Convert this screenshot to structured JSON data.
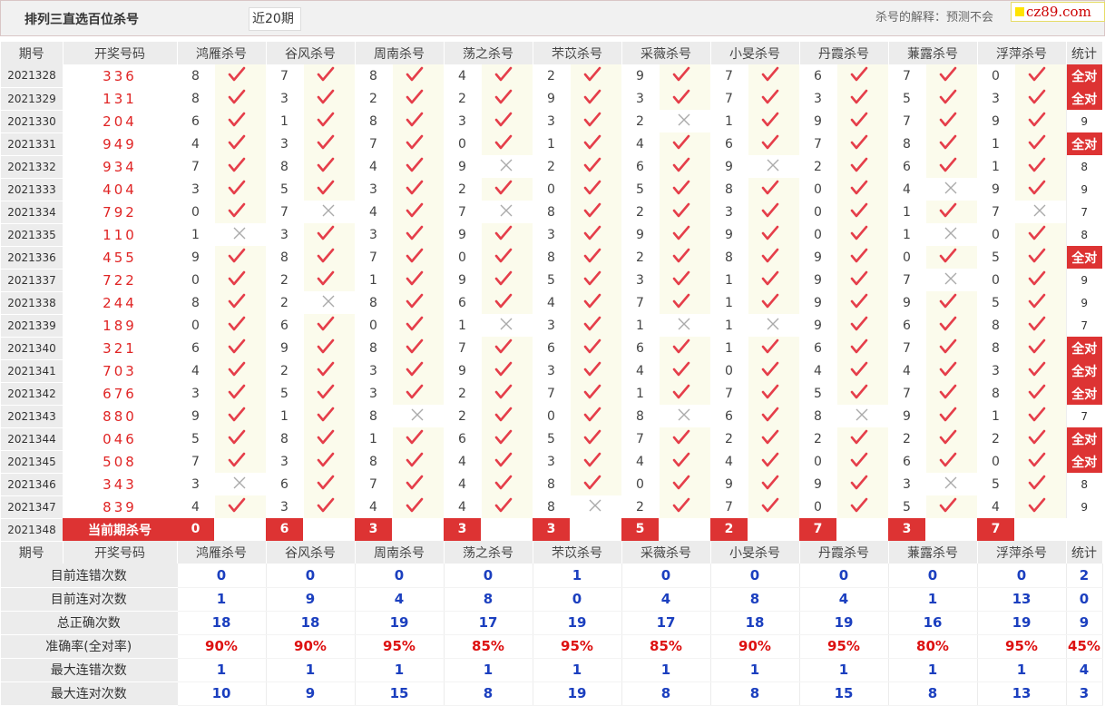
{
  "header": {
    "title": "排列三直选百位杀号",
    "period_select": "近20期",
    "explanation": "杀号的解释：预测不会",
    "watermark": "cz89.com"
  },
  "columns": [
    "期号",
    "开奖号码",
    "鸿雁杀号",
    "谷风杀号",
    "周南杀号",
    "荡之杀号",
    "芣苡杀号",
    "采薇杀号",
    "小旻杀号",
    "丹霞杀号",
    "蒹露杀号",
    "浮萍杀号",
    "统计"
  ],
  "rows": [
    {
      "period": "2021328",
      "draw": "336",
      "k": [
        "8",
        "7",
        "8",
        "4",
        "2",
        "9",
        "7",
        "6",
        "7",
        "0"
      ],
      "ok": [
        1,
        1,
        1,
        1,
        1,
        1,
        1,
        1,
        1,
        1
      ],
      "stat": "全对"
    },
    {
      "period": "2021329",
      "draw": "131",
      "k": [
        "8",
        "3",
        "2",
        "2",
        "9",
        "3",
        "7",
        "3",
        "5",
        "3"
      ],
      "ok": [
        1,
        1,
        1,
        1,
        1,
        1,
        1,
        1,
        1,
        1
      ],
      "stat": "全对"
    },
    {
      "period": "2021330",
      "draw": "204",
      "k": [
        "6",
        "1",
        "8",
        "3",
        "3",
        "2",
        "1",
        "9",
        "7",
        "9"
      ],
      "ok": [
        1,
        1,
        1,
        1,
        1,
        0,
        1,
        1,
        1,
        1
      ],
      "stat": "9"
    },
    {
      "period": "2021331",
      "draw": "949",
      "k": [
        "4",
        "3",
        "7",
        "0",
        "1",
        "4",
        "6",
        "7",
        "8",
        "1"
      ],
      "ok": [
        1,
        1,
        1,
        1,
        1,
        1,
        1,
        1,
        1,
        1
      ],
      "stat": "全对"
    },
    {
      "period": "2021332",
      "draw": "934",
      "k": [
        "7",
        "8",
        "4",
        "9",
        "2",
        "6",
        "9",
        "2",
        "6",
        "1"
      ],
      "ok": [
        1,
        1,
        1,
        0,
        1,
        1,
        0,
        1,
        1,
        1
      ],
      "stat": "8"
    },
    {
      "period": "2021333",
      "draw": "404",
      "k": [
        "3",
        "5",
        "3",
        "2",
        "0",
        "5",
        "8",
        "0",
        "4",
        "9"
      ],
      "ok": [
        1,
        1,
        1,
        1,
        1,
        1,
        1,
        1,
        0,
        1
      ],
      "stat": "9"
    },
    {
      "period": "2021334",
      "draw": "792",
      "k": [
        "0",
        "7",
        "4",
        "7",
        "8",
        "2",
        "3",
        "0",
        "1",
        "7"
      ],
      "ok": [
        1,
        0,
        1,
        0,
        1,
        1,
        1,
        1,
        1,
        0
      ],
      "stat": "7"
    },
    {
      "period": "2021335",
      "draw": "110",
      "k": [
        "1",
        "3",
        "3",
        "9",
        "3",
        "9",
        "9",
        "0",
        "1",
        "0"
      ],
      "ok": [
        0,
        1,
        1,
        1,
        1,
        1,
        1,
        1,
        0,
        1
      ],
      "stat": "8"
    },
    {
      "period": "2021336",
      "draw": "455",
      "k": [
        "9",
        "8",
        "7",
        "0",
        "8",
        "2",
        "8",
        "9",
        "0",
        "5"
      ],
      "ok": [
        1,
        1,
        1,
        1,
        1,
        1,
        1,
        1,
        1,
        1
      ],
      "stat": "全对"
    },
    {
      "period": "2021337",
      "draw": "722",
      "k": [
        "0",
        "2",
        "1",
        "9",
        "5",
        "3",
        "1",
        "9",
        "7",
        "0"
      ],
      "ok": [
        1,
        1,
        1,
        1,
        1,
        1,
        1,
        1,
        0,
        1
      ],
      "stat": "9"
    },
    {
      "period": "2021338",
      "draw": "244",
      "k": [
        "8",
        "2",
        "8",
        "6",
        "4",
        "7",
        "1",
        "9",
        "9",
        "5"
      ],
      "ok": [
        1,
        0,
        1,
        1,
        1,
        1,
        1,
        1,
        1,
        1
      ],
      "stat": "9"
    },
    {
      "period": "2021339",
      "draw": "189",
      "k": [
        "0",
        "6",
        "0",
        "1",
        "3",
        "1",
        "1",
        "9",
        "6",
        "8"
      ],
      "ok": [
        1,
        1,
        1,
        0,
        1,
        0,
        0,
        1,
        1,
        1
      ],
      "stat": "7"
    },
    {
      "period": "2021340",
      "draw": "321",
      "k": [
        "6",
        "9",
        "8",
        "7",
        "6",
        "6",
        "1",
        "6",
        "7",
        "8"
      ],
      "ok": [
        1,
        1,
        1,
        1,
        1,
        1,
        1,
        1,
        1,
        1
      ],
      "stat": "全对"
    },
    {
      "period": "2021341",
      "draw": "703",
      "k": [
        "4",
        "2",
        "3",
        "9",
        "3",
        "4",
        "0",
        "4",
        "4",
        "3"
      ],
      "ok": [
        1,
        1,
        1,
        1,
        1,
        1,
        1,
        1,
        1,
        1
      ],
      "stat": "全对"
    },
    {
      "period": "2021342",
      "draw": "676",
      "k": [
        "3",
        "5",
        "3",
        "2",
        "7",
        "1",
        "7",
        "5",
        "7",
        "8"
      ],
      "ok": [
        1,
        1,
        1,
        1,
        1,
        1,
        1,
        1,
        1,
        1
      ],
      "stat": "全对"
    },
    {
      "period": "2021343",
      "draw": "880",
      "k": [
        "9",
        "1",
        "8",
        "2",
        "0",
        "8",
        "6",
        "8",
        "9",
        "1"
      ],
      "ok": [
        1,
        1,
        0,
        1,
        1,
        0,
        1,
        0,
        1,
        1
      ],
      "stat": "7"
    },
    {
      "period": "2021344",
      "draw": "046",
      "k": [
        "5",
        "8",
        "1",
        "6",
        "5",
        "7",
        "2",
        "2",
        "2",
        "2"
      ],
      "ok": [
        1,
        1,
        1,
        1,
        1,
        1,
        1,
        1,
        1,
        1
      ],
      "stat": "全对"
    },
    {
      "period": "2021345",
      "draw": "508",
      "k": [
        "7",
        "3",
        "8",
        "4",
        "3",
        "4",
        "4",
        "0",
        "6",
        "0"
      ],
      "ok": [
        1,
        1,
        1,
        1,
        1,
        1,
        1,
        1,
        1,
        1
      ],
      "stat": "全对"
    },
    {
      "period": "2021346",
      "draw": "343",
      "k": [
        "3",
        "6",
        "7",
        "4",
        "8",
        "0",
        "9",
        "9",
        "3",
        "5"
      ],
      "ok": [
        0,
        1,
        1,
        1,
        1,
        1,
        1,
        1,
        0,
        1
      ],
      "stat": "8"
    },
    {
      "period": "2021347",
      "draw": "839",
      "k": [
        "4",
        "3",
        "4",
        "4",
        "8",
        "2",
        "7",
        "0",
        "5",
        "4"
      ],
      "ok": [
        1,
        1,
        1,
        1,
        0,
        1,
        1,
        1,
        1,
        1
      ],
      "stat": "9"
    }
  ],
  "current": {
    "period": "2021348",
    "label": "当前期杀号",
    "kills": [
      "0",
      "6",
      "3",
      "3",
      "3",
      "5",
      "2",
      "7",
      "3",
      "7"
    ]
  },
  "stats": [
    {
      "label": "目前连错次数",
      "values": [
        "0",
        "0",
        "0",
        "0",
        "1",
        "0",
        "0",
        "0",
        "0",
        "0",
        "2"
      ]
    },
    {
      "label": "目前连对次数",
      "values": [
        "1",
        "9",
        "4",
        "8",
        "0",
        "4",
        "8",
        "4",
        "1",
        "13",
        "0"
      ]
    },
    {
      "label": "总正确次数",
      "values": [
        "18",
        "18",
        "19",
        "17",
        "19",
        "17",
        "18",
        "19",
        "16",
        "19",
        "9"
      ]
    },
    {
      "label": "准确率(全对率)",
      "values": [
        "90%",
        "90%",
        "95%",
        "85%",
        "95%",
        "85%",
        "90%",
        "95%",
        "80%",
        "95%",
        "45%"
      ]
    },
    {
      "label": "最大连错次数",
      "values": [
        "1",
        "1",
        "1",
        "1",
        "1",
        "1",
        "1",
        "1",
        "1",
        "1",
        "4"
      ]
    },
    {
      "label": "最大连对次数",
      "values": [
        "10",
        "9",
        "15",
        "8",
        "19",
        "8",
        "8",
        "15",
        "8",
        "13",
        "3"
      ]
    }
  ],
  "colors": {
    "accent_red": "#dd3333",
    "stat_blue": "#1b3fbf",
    "header_gray": "#ececec"
  },
  "icons": {
    "correct": "check-icon",
    "wrong": "cross-icon"
  }
}
